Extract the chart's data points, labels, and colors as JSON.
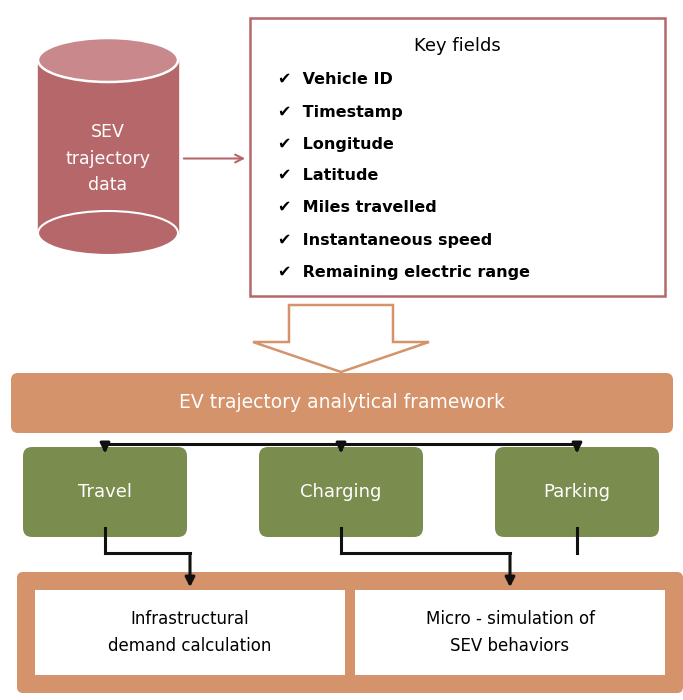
{
  "cylinder_color": "#b5676a",
  "cylinder_top_color": "#c9898c",
  "cylinder_text": "SEV\ntrajectory\ndata",
  "cylinder_text_color": "#ffffff",
  "arrow_color": "#b5676a",
  "key_fields_border_color": "#b5676a",
  "key_fields_title": "Key fields",
  "key_fields_items": [
    "✔  Vehicle ID",
    "✔  Timestamp",
    "✔  Longitude",
    "✔  Latitude",
    "✔  Miles travelled",
    "✔  Instantaneous speed",
    "✔  Remaining electric range"
  ],
  "big_arrow_fill": "#ffffff",
  "big_arrow_border": "#d4936a",
  "framework_box_color": "#d4936a",
  "framework_text": "EV trajectory analytical framework",
  "framework_text_color": "#ffffff",
  "green_box_color": "#7a8c4e",
  "green_box_text_color": "#ffffff",
  "green_boxes": [
    "Travel",
    "Charging",
    "Parking"
  ],
  "bottom_box_outer_color": "#d4936a",
  "bottom_box_inner_color": "#ffffff",
  "bottom_boxes": [
    "Infrastructural\ndemand calculation",
    "Micro - simulation of\nSEV behaviors"
  ],
  "line_color": "#111111",
  "bg_color": "#ffffff"
}
